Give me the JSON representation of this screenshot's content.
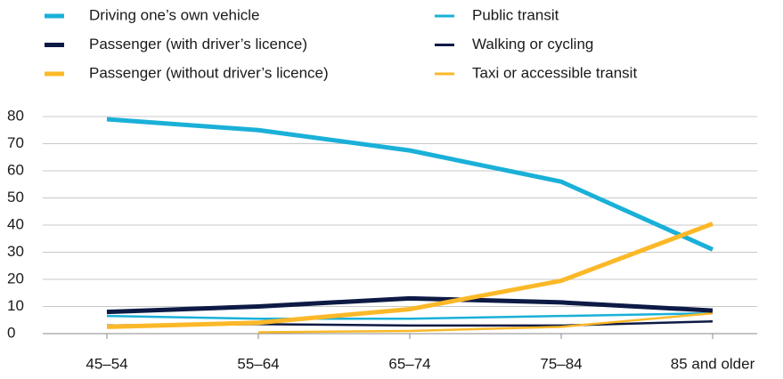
{
  "chart_data": {
    "type": "line",
    "categories": [
      "45–54",
      "55–64",
      "65–74",
      "75–84",
      "85 and older"
    ],
    "series": [
      {
        "name": "Driving one’s own vehicle",
        "color": "#1ab0d8",
        "width": "thick",
        "values": [
          79,
          75,
          67.5,
          56,
          31
        ]
      },
      {
        "name": "Passenger (with driver’s licence)",
        "color": "#0d1a45",
        "width": "thick",
        "values": [
          8,
          10,
          13,
          11.5,
          8.5
        ]
      },
      {
        "name": "Passenger (without driver’s licence)",
        "color": "#fbb828",
        "width": "thick",
        "values": [
          2.5,
          4,
          9,
          19.5,
          40.5
        ]
      },
      {
        "name": "Public transit",
        "color": "#1ab0d8",
        "width": "thin",
        "values": [
          6.5,
          5.5,
          5.5,
          6.5,
          7.5
        ]
      },
      {
        "name": "Walking or cycling",
        "color": "#0d1a45",
        "width": "thin",
        "values": [
          3,
          3.5,
          3,
          3,
          4.5
        ]
      },
      {
        "name": "Taxi or accessible transit",
        "color": "#fbb828",
        "width": "thin",
        "values": [
          null,
          0.5,
          1,
          2.5,
          7.5
        ]
      }
    ],
    "ylim": [
      0,
      80
    ],
    "yticks": [
      0,
      10,
      20,
      30,
      40,
      50,
      60,
      70,
      80
    ],
    "grid": true,
    "legend": "top"
  }
}
